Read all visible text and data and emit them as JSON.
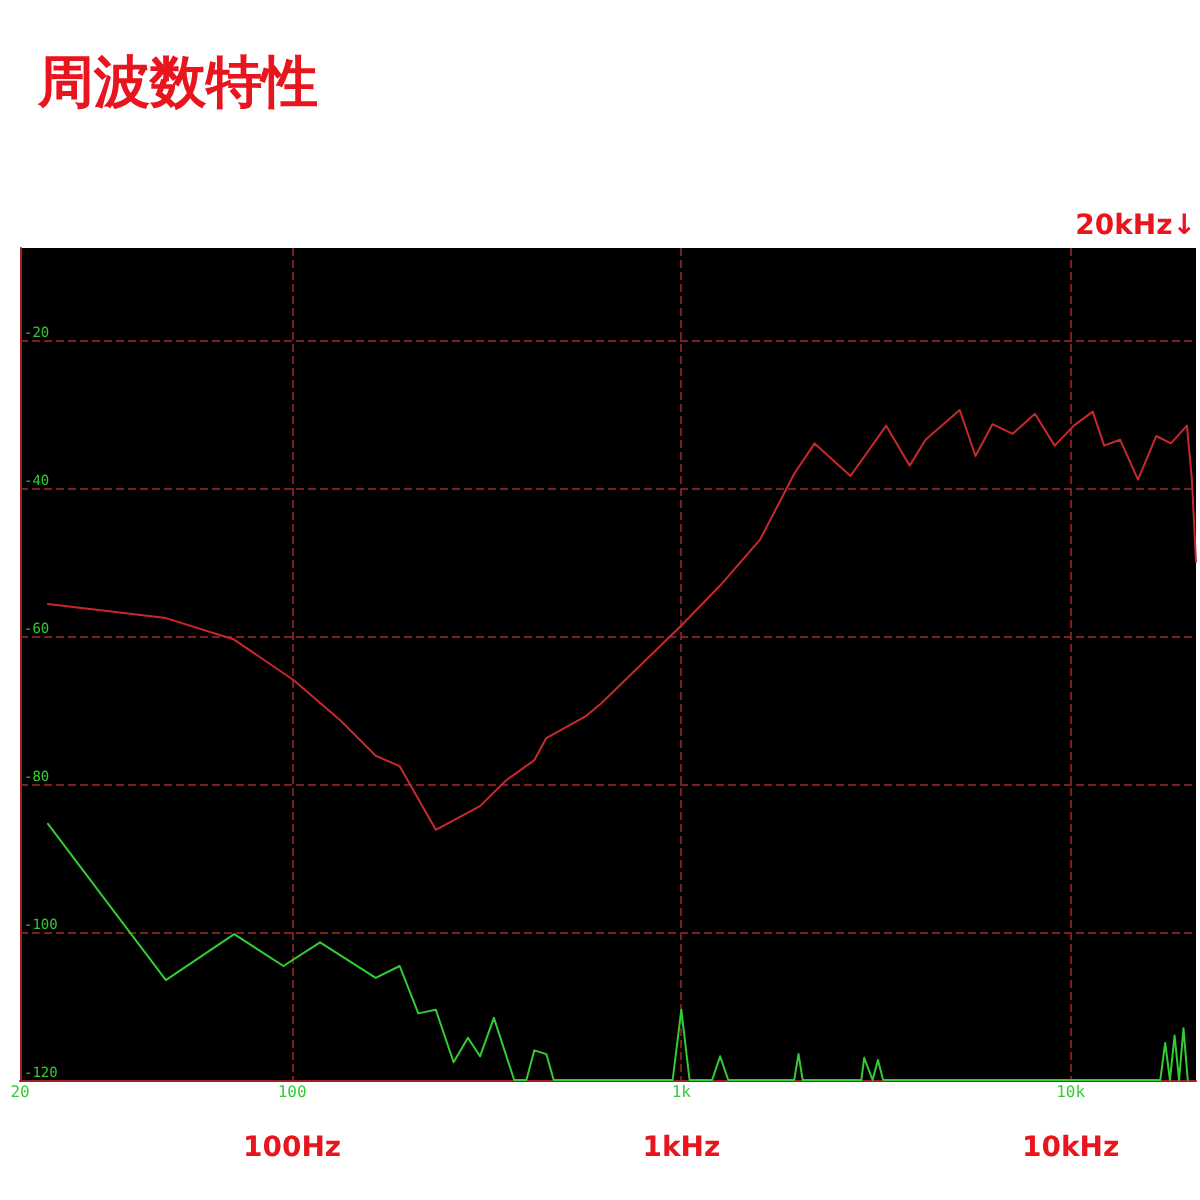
{
  "chart_data": {
    "type": "line",
    "title": "周波数特性",
    "log": "x",
    "grid": true,
    "marker": "none",
    "line_style": "solid",
    "xlim": [
      20,
      21000
    ],
    "ylim": [
      -120,
      -7.6
    ],
    "xticks": [
      20,
      100,
      {
        "value": 1000,
        "label": "1k"
      },
      {
        "value": 10000,
        "label": "10k"
      }
    ],
    "yticks": [
      -120,
      -100,
      -80,
      -60,
      -40,
      -20
    ],
    "annotations": [
      "100Hz",
      "1kHz",
      "10kHz",
      "20kHz↓"
    ],
    "series": [
      {
        "color": "#c8282d",
        "x": [
          23.6,
          47.4,
          71,
          101,
          133,
          164,
          189,
          234,
          304,
          355,
          419,
          450,
          570,
          620,
          1000,
          1258,
          1593,
          1950,
          2200,
          2720,
          3360,
          3860,
          4240,
          5190,
          5700,
          6300,
          7100,
          8100,
          9100,
          10200,
          11400,
          12200,
          13400,
          14900,
          16600,
          18100,
          19900,
          20500,
          21000
        ],
        "values": [
          -55.7,
          -57.6,
          -60.5,
          -66,
          -71.4,
          -76.2,
          -77.6,
          -86.2,
          -83,
          -79.5,
          -76.8,
          -73.8,
          -70.8,
          -69.2,
          -58.6,
          -53.2,
          -47,
          -38.1,
          -34,
          -38.4,
          -31.6,
          -37,
          -33.5,
          -29.5,
          -35.7,
          -31.4,
          -32.7,
          -30,
          -34.3,
          -31.6,
          -29.7,
          -34.3,
          -33.5,
          -38.9,
          -33,
          -34,
          -31.6,
          -38.9,
          -50
        ]
      },
      {
        "color": "#33cc33",
        "x": [
          23.6,
          47.4,
          71,
          95,
          118,
          164,
          189,
          211,
          234,
          260,
          283,
          304,
          330,
          372,
          400,
          419,
          450,
          470,
          950,
          1000,
          1050,
          1200,
          1258,
          1320,
          1950,
          2000,
          2050,
          2900,
          2950,
          3100,
          3200,
          3300,
          17000,
          17500,
          18000,
          18500,
          19000,
          19500,
          20000
        ],
        "values": [
          -85.4,
          -106.5,
          -100.3,
          -104.6,
          -101.4,
          -106.2,
          -104.6,
          -111,
          -110.5,
          -117.6,
          -114.3,
          -116.8,
          -111.6,
          -120,
          -120,
          -116,
          -116.5,
          -120,
          -120,
          -110.5,
          -120,
          -120,
          -116.8,
          -120,
          -120,
          -116.5,
          -120,
          -120,
          -117,
          -120,
          -117.3,
          -120,
          -120,
          -115,
          -120,
          -114,
          -120,
          -113,
          -120
        ]
      }
    ]
  }
}
